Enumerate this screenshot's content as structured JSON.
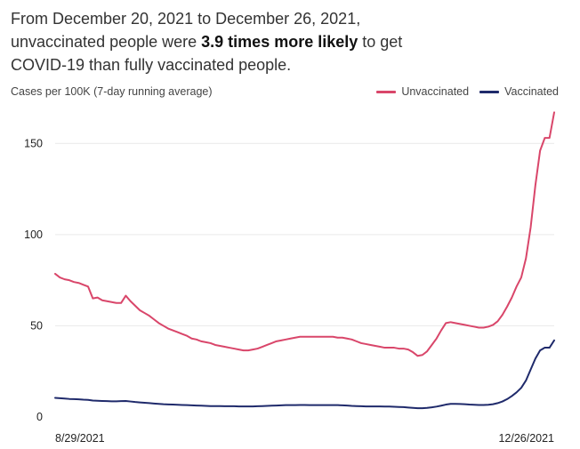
{
  "headline": {
    "line1": "From December 20, 2021 to December 26, 2021,",
    "line2_pre": "unvaccinated people were ",
    "line2_bold": "3.9 times more likely",
    "line2_post": " to get",
    "line3": "COVID-19 than fully vaccinated people."
  },
  "colors": {
    "unvaccinated": "#d9466a",
    "vaccinated": "#1f2a6b",
    "grid": "#e9e9e9"
  },
  "chart_data": {
    "type": "line",
    "title": "",
    "ylabel": "Cases per 100K (7-day running average)",
    "xlabel": "",
    "ylim": [
      0,
      175
    ],
    "yticks": [
      0,
      50,
      100,
      150
    ],
    "xtick_labels": [
      "8/29/2021",
      "12/26/2021"
    ],
    "x_start": "8/29/2021",
    "x_end": "12/26/2021",
    "legend_position": "top-right",
    "grid": true,
    "series": [
      {
        "name": "Unvaccinated",
        "color": "#d9466a",
        "values": [
          78.5,
          76.5,
          75.5,
          75,
          74,
          73.5,
          72.5,
          71.5,
          65,
          65.5,
          64,
          63.5,
          63,
          62.5,
          62.5,
          66.5,
          63.5,
          61,
          58.5,
          57,
          55.5,
          53.5,
          51.5,
          50,
          48.5,
          47.5,
          46.5,
          45.5,
          44.5,
          43,
          42.5,
          41.5,
          41,
          40.5,
          39.5,
          39,
          38.5,
          38,
          37.5,
          37,
          36.5,
          36.5,
          37,
          37.5,
          38.5,
          39.5,
          40.5,
          41.5,
          42,
          42.5,
          43,
          43.5,
          44,
          44,
          44,
          44,
          44,
          44,
          44,
          44,
          43.5,
          43.5,
          43,
          42.5,
          41.5,
          40.5,
          40,
          39.5,
          39,
          38.5,
          38,
          38,
          38,
          37.5,
          37.5,
          37,
          35.5,
          33.5,
          34,
          36,
          39.5,
          43,
          47.5,
          51.5,
          52,
          51.5,
          51,
          50.5,
          50,
          49.5,
          49,
          49,
          49.5,
          50.5,
          52.5,
          56,
          60.5,
          65.5,
          71.5,
          76.5,
          87,
          104,
          127,
          146,
          153,
          153,
          167
        ]
      },
      {
        "name": "Vaccinated",
        "color": "#1f2a6b",
        "values": [
          10.5,
          10.3,
          10.1,
          9.9,
          9.8,
          9.7,
          9.5,
          9.4,
          9,
          8.9,
          8.8,
          8.7,
          8.6,
          8.6,
          8.7,
          8.8,
          8.5,
          8.2,
          8,
          7.8,
          7.6,
          7.4,
          7.2,
          7,
          6.9,
          6.8,
          6.7,
          6.6,
          6.5,
          6.4,
          6.3,
          6.2,
          6.1,
          6,
          6,
          6,
          5.9,
          5.9,
          5.9,
          5.8,
          5.8,
          5.8,
          5.8,
          5.9,
          6,
          6.1,
          6.2,
          6.3,
          6.4,
          6.5,
          6.5,
          6.5,
          6.6,
          6.6,
          6.5,
          6.5,
          6.5,
          6.5,
          6.5,
          6.5,
          6.5,
          6.4,
          6.3,
          6.1,
          6,
          5.9,
          5.8,
          5.8,
          5.8,
          5.8,
          5.7,
          5.7,
          5.6,
          5.5,
          5.4,
          5.2,
          5,
          4.8,
          4.8,
          5,
          5.3,
          5.7,
          6.2,
          6.8,
          7.2,
          7.2,
          7.1,
          7,
          6.8,
          6.7,
          6.6,
          6.6,
          6.7,
          7,
          7.6,
          8.5,
          9.8,
          11.5,
          13.5,
          16,
          20,
          26,
          32,
          36.5,
          38,
          38,
          42
        ]
      }
    ]
  }
}
